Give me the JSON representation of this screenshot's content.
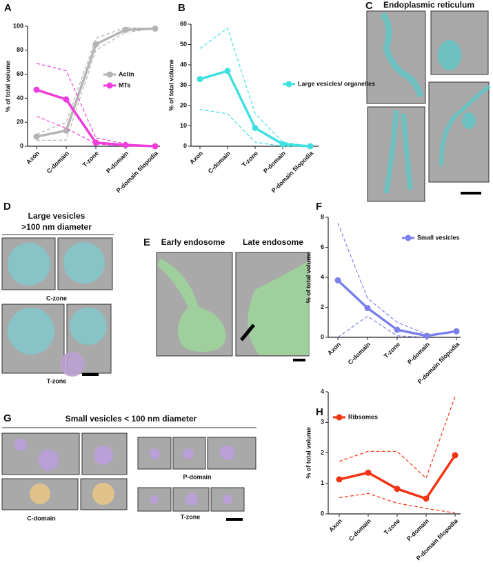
{
  "chart_data": [
    {
      "type": "line",
      "panel": "A",
      "ylabel": "% of total volume",
      "categories": [
        "Axon",
        "C-domain",
        "T-zone",
        "P-domain",
        "P-domain filopodia"
      ],
      "ylim": [
        0,
        100
      ],
      "yticks": [
        0,
        20,
        40,
        60,
        80,
        100
      ],
      "series": [
        {
          "name": "Actin",
          "color": "#b4b4b4",
          "values": [
            8,
            13,
            85,
            97,
            98
          ],
          "upper": [
            10,
            20,
            90,
            99,
            98
          ],
          "lower": [
            5,
            5,
            80,
            95,
            98
          ]
        },
        {
          "name": "MTs",
          "color": "#f03cdc",
          "values": [
            47,
            39,
            3,
            1,
            0
          ],
          "upper": [
            69,
            63,
            7,
            2,
            0
          ],
          "lower": [
            25,
            15,
            2,
            0,
            0
          ]
        }
      ]
    },
    {
      "type": "line",
      "panel": "B",
      "ylabel": "% of total volume",
      "categories": [
        "Axon",
        "C-domain",
        "T-zone",
        "P-domain",
        "P-domain filopodia"
      ],
      "ylim": [
        0,
        60
      ],
      "yticks": [
        0,
        10,
        20,
        30,
        40,
        50,
        60
      ],
      "series": [
        {
          "name": "Large vesicles/ organelles",
          "color": "#40e0e0",
          "values": [
            33,
            37,
            9,
            1,
            0
          ],
          "upper": [
            48,
            58,
            16,
            2,
            0
          ],
          "lower": [
            18,
            16,
            2,
            0,
            0
          ]
        }
      ]
    },
    {
      "type": "line",
      "panel": "F",
      "ylabel": "% of total volume",
      "categories": [
        "Axon",
        "C-domain",
        "T-zone",
        "P-domain",
        "P-domain filopodia"
      ],
      "ylim": [
        0,
        8
      ],
      "yticks": [
        0,
        2,
        4,
        6,
        8
      ],
      "series": [
        {
          "name": "Small vesicles",
          "color": "#7b80ee",
          "values": [
            3.8,
            1.95,
            0.5,
            0.1,
            0.4
          ],
          "upper": [
            7.6,
            2.6,
            1.0,
            0.2,
            null
          ],
          "lower": [
            0,
            1.4,
            0.1,
            0,
            null
          ]
        }
      ]
    },
    {
      "type": "line",
      "panel": "H",
      "ylabel": "% of total volume",
      "categories": [
        "Axon",
        "C-domain",
        "T-zone",
        "P-domain",
        "P-domain filopodia"
      ],
      "ylim": [
        0,
        4
      ],
      "yticks": [
        0,
        1,
        2,
        3,
        4
      ],
      "series": [
        {
          "name": "Ribsomes",
          "color": "#f23414",
          "values": [
            1.13,
            1.35,
            0.82,
            0.5,
            1.92
          ],
          "upper": [
            1.72,
            2.05,
            2.05,
            1.17,
            3.85
          ],
          "lower": [
            0.53,
            0.67,
            0.35,
            0.18,
            0.03
          ]
        }
      ]
    }
  ],
  "figure": {
    "er_title": "Endoplasmic reticulum",
    "d_title": [
      "Large vesicles",
      ">100 nm diameter"
    ],
    "d_labels": [
      "C-zone",
      "T-zone"
    ],
    "e_labels": [
      "Early endosome",
      "Late endosome"
    ],
    "g_title": "Small vesicles < 100 nm diameter",
    "g_labels": [
      "P-domain",
      "C-domain",
      "T-zone"
    ],
    "panel_labels": [
      "C",
      "D",
      "E",
      "G"
    ]
  }
}
